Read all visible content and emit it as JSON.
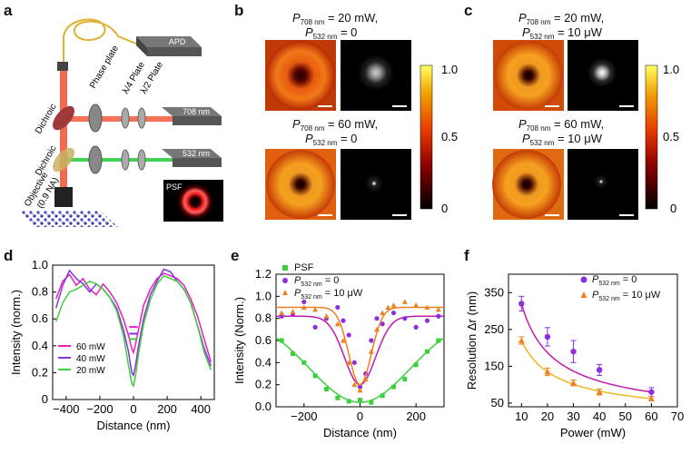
{
  "panels": {
    "a": {
      "letter": "a",
      "labels": {
        "apd": "APD",
        "phase_plate": "Phase plate",
        "quarter_plate": "λ/4 Plate",
        "half_plate": "λ/2 Plate",
        "laser_708": "708 nm",
        "laser_532": "532 nm",
        "dichroic_1": "Dichroic",
        "dichroic_2": "Dichroic",
        "objective": "Objective",
        "objective_na": "(0.9 NA)",
        "psf": "PSF"
      }
    },
    "b": {
      "letter": "b",
      "top_line1_pre": "P",
      "top_line1_sub": "708 nm",
      "top_line1_post": " = 20 mW,",
      "top_line2_pre": "P",
      "top_line2_sub": "532 nm",
      "top_line2_post": " = 0",
      "bot_line1_pre": "P",
      "bot_line1_sub": "708 nm",
      "bot_line1_post": " = 60 mW,",
      "bot_line2_pre": "P",
      "bot_line2_sub": "532 nm",
      "bot_line2_post": " = 0",
      "colorbar_ticks": [
        "1.0",
        "0.5",
        "0"
      ]
    },
    "c": {
      "letter": "c",
      "top_line1_pre": "P",
      "top_line1_sub": "708 nm",
      "top_line1_post": " = 20 mW,",
      "top_line2_pre": "P",
      "top_line2_sub": "532 nm",
      "top_line2_post": " = 10 μW",
      "bot_line1_pre": "P",
      "bot_line1_sub": "708 nm",
      "bot_line1_post": " = 60 mW,",
      "bot_line2_pre": "P",
      "bot_line2_sub": "532 nm",
      "bot_line2_post": " = 10 μW",
      "colorbar_ticks": [
        "1.0",
        "0.5",
        "0"
      ]
    },
    "d": {
      "letter": "d"
    },
    "e": {
      "letter": "e"
    },
    "f": {
      "letter": "f"
    }
  },
  "colors": {
    "magenta": "#e41fbf",
    "purple": "#8b2fe0",
    "green": "#3ccf3c",
    "orange": "#f07f1f",
    "dark_magenta": "#c01ab0"
  },
  "chart_data": [
    {
      "id": "d",
      "type": "line",
      "xlabel": "Distance (nm)",
      "ylabel": "Intensity (norm.)",
      "xlim": [
        -480,
        480
      ],
      "ylim": [
        0,
        1.0
      ],
      "xticks": [
        -400,
        -200,
        0,
        200,
        400
      ],
      "yticks": [
        0,
        0.2,
        0.4,
        0.6,
        0.8,
        1.0
      ],
      "xtick_labels": [
        "−400",
        "−200",
        "0",
        "200",
        "400"
      ],
      "ytick_labels": [
        "0",
        "0.2",
        "0.4",
        "0.6",
        "0.8",
        "1.0"
      ],
      "legend": [
        "60 mW",
        "40 mW",
        "20 mW"
      ],
      "series": [
        {
          "name": "60 mW",
          "color": "#e41fbf",
          "x": [
            -460,
            -420,
            -380,
            -340,
            -300,
            -260,
            -220,
            -180,
            -140,
            -100,
            -60,
            -30,
            -10,
            0,
            10,
            30,
            60,
            100,
            140,
            180,
            220,
            260,
            300,
            340,
            380,
            420,
            460
          ],
          "y": [
            0.75,
            0.88,
            0.93,
            0.85,
            0.9,
            0.82,
            0.78,
            0.86,
            0.8,
            0.72,
            0.6,
            0.48,
            0.38,
            0.35,
            0.4,
            0.52,
            0.7,
            0.82,
            0.9,
            0.94,
            0.92,
            0.9,
            0.85,
            0.75,
            0.62,
            0.45,
            0.28
          ]
        },
        {
          "name": "40 mW",
          "color": "#8b2fe0",
          "x": [
            -460,
            -420,
            -380,
            -340,
            -300,
            -260,
            -220,
            -180,
            -140,
            -100,
            -60,
            -30,
            -10,
            0,
            10,
            30,
            60,
            100,
            140,
            180,
            220,
            260,
            300,
            340,
            380,
            420,
            460
          ],
          "y": [
            0.68,
            0.85,
            0.96,
            0.9,
            0.86,
            0.8,
            0.86,
            0.82,
            0.76,
            0.68,
            0.52,
            0.36,
            0.2,
            0.18,
            0.24,
            0.4,
            0.6,
            0.78,
            0.88,
            0.97,
            0.95,
            0.88,
            0.82,
            0.72,
            0.55,
            0.38,
            0.25
          ]
        },
        {
          "name": "20 mW",
          "color": "#3ccf3c",
          "x": [
            -460,
            -420,
            -380,
            -340,
            -300,
            -260,
            -220,
            -180,
            -140,
            -100,
            -60,
            -30,
            -10,
            0,
            10,
            30,
            60,
            100,
            140,
            180,
            220,
            260,
            300,
            340,
            380,
            420,
            460
          ],
          "y": [
            0.58,
            0.72,
            0.8,
            0.82,
            0.85,
            0.88,
            0.86,
            0.82,
            0.76,
            0.66,
            0.48,
            0.26,
            0.12,
            0.1,
            0.16,
            0.34,
            0.56,
            0.74,
            0.86,
            0.92,
            0.9,
            0.88,
            0.82,
            0.72,
            0.55,
            0.35,
            0.22
          ]
        }
      ]
    },
    {
      "id": "e",
      "type": "scatter",
      "xlabel": "Distance (nm)",
      "ylabel": "Intensity (Norm.)",
      "xlim": [
        -300,
        300
      ],
      "ylim": [
        0,
        1.2
      ],
      "xticks": [
        -200,
        0,
        200
      ],
      "yticks": [
        0,
        0.2,
        0.4,
        0.6,
        0.8,
        1.0,
        1.2
      ],
      "xtick_labels": [
        "−200",
        "0",
        "200"
      ],
      "ytick_labels": [
        "0.0",
        "0.2",
        "0.4",
        "0.6",
        "0.8",
        "1.0",
        "1.2"
      ],
      "legend": [
        "PSF",
        "P532 nm = 0",
        "P532 nm = 10 μW"
      ],
      "legend_text": {
        "psf": "PSF",
        "l2_pre": "P",
        "l2_sub": "532 nm",
        "l2_post": " = 0",
        "l3_pre": "P",
        "l3_sub": "532 nm",
        "l3_post": " = 10 μW"
      },
      "series": [
        {
          "name": "PSF",
          "color": "#3ccf3c",
          "marker": "square",
          "x": [
            -280,
            -240,
            -200,
            -160,
            -120,
            -80,
            -40,
            0,
            40,
            80,
            120,
            160,
            200,
            240,
            280
          ],
          "y": [
            0.6,
            0.48,
            0.4,
            0.28,
            0.16,
            0.08,
            0.05,
            0.06,
            0.04,
            0.1,
            0.18,
            0.25,
            0.38,
            0.5,
            0.6
          ],
          "fit": {
            "center": 0,
            "depth": 0.78,
            "width": 180,
            "base": 0.82
          }
        },
        {
          "name": "P532 nm = 0",
          "color": "#8b2fe0",
          "marker": "circle",
          "x": [
            -280,
            -240,
            -200,
            -160,
            -120,
            -80,
            -60,
            -40,
            -20,
            0,
            20,
            40,
            60,
            80,
            120,
            160,
            200,
            240,
            280
          ],
          "y": [
            0.82,
            0.84,
            0.95,
            0.72,
            0.8,
            0.9,
            0.78,
            0.65,
            0.4,
            0.18,
            0.3,
            0.6,
            0.8,
            0.75,
            0.85,
            0.8,
            0.72,
            0.78,
            0.82
          ],
          "fit": {
            "center": 0,
            "depth": 0.62,
            "width": 55,
            "base": 0.82
          }
        },
        {
          "name": "P532 nm = 10 μW",
          "color": "#f07f1f",
          "marker": "triangle",
          "x": [
            -280,
            -240,
            -200,
            -160,
            -120,
            -80,
            -60,
            -40,
            -20,
            0,
            20,
            40,
            60,
            80,
            100,
            120,
            160,
            200,
            240,
            280
          ],
          "y": [
            0.85,
            0.86,
            0.9,
            0.88,
            0.82,
            0.75,
            0.6,
            0.4,
            0.2,
            0.15,
            0.25,
            0.5,
            0.7,
            0.85,
            0.9,
            0.92,
            0.95,
            0.92,
            0.9,
            0.88
          ],
          "fit": {
            "center": 0,
            "depth": 0.7,
            "width": 40,
            "base": 0.9
          }
        }
      ]
    },
    {
      "id": "f",
      "type": "scatter",
      "xlabel": "Power (mW)",
      "ylabel": "Resolution Δr (nm)",
      "xlim": [
        5,
        70
      ],
      "ylim": [
        40,
        400
      ],
      "xticks": [
        10,
        20,
        30,
        40,
        50,
        60,
        70
      ],
      "yticks": [
        50,
        150,
        250,
        350
      ],
      "xtick_labels": [
        "10",
        "20",
        "30",
        "40",
        "50",
        "60",
        "70"
      ],
      "ytick_labels": [
        "50",
        "150",
        "250",
        "350"
      ],
      "legend_text": {
        "l1_pre": "P",
        "l1_sub": "532 nm",
        "l1_post": " = 0",
        "l2_pre": "P",
        "l2_sub": "532 nm",
        "l2_post": " = 10 μW"
      },
      "series": [
        {
          "name": "P532 nm = 0",
          "color": "#8b2fe0",
          "marker": "circle",
          "x": [
            10,
            20,
            30,
            40,
            60
          ],
          "y": [
            320,
            230,
            190,
            140,
            80
          ],
          "err": [
            20,
            25,
            30,
            15,
            12
          ],
          "fit_color": "#c01ab0"
        },
        {
          "name": "P532 nm = 10 μW",
          "color": "#f07f1f",
          "marker": "triangle",
          "x": [
            10,
            20,
            30,
            40,
            60
          ],
          "y": [
            220,
            135,
            105,
            80,
            62
          ],
          "err": [
            10,
            10,
            8,
            8,
            6
          ],
          "fit_color": "#f0b820"
        }
      ]
    }
  ]
}
